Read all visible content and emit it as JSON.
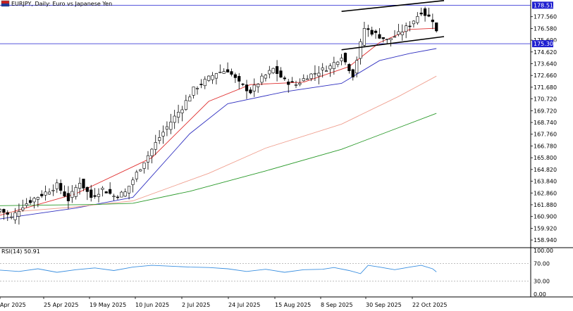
{
  "window": {
    "symbol_title": "EURJPY, Daily:  Euro vs Japanese Yen"
  },
  "price_panel": {
    "hlines": [
      {
        "value": 178.517,
        "label": "178.517",
        "color": "#1f1fd0"
      },
      {
        "value": 175.305,
        "label": "175.305",
        "color": "#1f1fd0"
      }
    ]
  },
  "rsi_panel": {
    "label": "RSI(14) 50.91",
    "levels": [
      70,
      30
    ],
    "ticks": [
      "100.00",
      "70.00",
      "30.00",
      "0.00"
    ]
  },
  "chart_data": {
    "type": "candlestick",
    "timeframe": "Daily",
    "ylim": [
      158.3,
      178.95
    ],
    "y_ticks": [
      "177.560",
      "176.580",
      "175.600",
      "174.620",
      "173.640",
      "172.660",
      "171.680",
      "170.720",
      "169.720",
      "168.740",
      "167.760",
      "166.780",
      "165.800",
      "164.820",
      "163.840",
      "162.860",
      "161.880",
      "160.900",
      "159.920",
      "158.940"
    ],
    "x_ticks": [
      "4 Apr 2025",
      "25 Apr 2025",
      "19 May 2025",
      "10 Jun 2025",
      "2 Jul 2025",
      "24 Jul 2025",
      "15 Aug 2025",
      "8 Sep 2025",
      "30 Sep 2025",
      "22 Oct 2025"
    ],
    "close_path": [
      [
        0,
        161.5
      ],
      [
        3,
        160.8
      ],
      [
        6,
        161.8
      ],
      [
        9,
        162.4
      ],
      [
        12,
        162.9
      ],
      [
        15,
        163.5
      ],
      [
        18,
        162.3
      ],
      [
        21,
        163.8
      ],
      [
        24,
        162.5
      ],
      [
        27,
        163.2
      ],
      [
        30,
        162.6
      ],
      [
        33,
        162.9
      ],
      [
        36,
        164.5
      ],
      [
        39,
        166.0
      ],
      [
        42,
        167.5
      ],
      [
        45,
        168.8
      ],
      [
        48,
        170.0
      ],
      [
        51,
        171.5
      ],
      [
        54,
        172.2
      ],
      [
        57,
        172.9
      ],
      [
        60,
        173.1
      ],
      [
        63,
        172.0
      ],
      [
        66,
        171.3
      ],
      [
        69,
        172.4
      ],
      [
        72,
        173.2
      ],
      [
        75,
        172.2
      ],
      [
        78,
        171.9
      ],
      [
        81,
        172.6
      ],
      [
        84,
        173.0
      ],
      [
        87,
        173.4
      ],
      [
        90,
        174.3
      ],
      [
        93,
        172.7
      ],
      [
        96,
        176.6
      ],
      [
        99,
        176.1
      ],
      [
        102,
        175.6
      ],
      [
        105,
        176.1
      ],
      [
        108,
        176.9
      ],
      [
        111,
        178.0
      ],
      [
        114,
        177.3
      ],
      [
        115,
        176.3
      ]
    ],
    "series": [
      {
        "name": "",
        "color": "#e03030",
        "values": [
          [
            0,
            161.0
          ],
          [
            20,
            162.8
          ],
          [
            40,
            165.8
          ],
          [
            55,
            170.5
          ],
          [
            66,
            171.9
          ],
          [
            80,
            172.1
          ],
          [
            92,
            173.4
          ],
          [
            100,
            175.4
          ],
          [
            108,
            176.5
          ],
          [
            115,
            176.6
          ]
        ]
      },
      {
        "name": "",
        "color": "#3030c0",
        "values": [
          [
            0,
            160.7
          ],
          [
            20,
            161.6
          ],
          [
            35,
            162.5
          ],
          [
            50,
            167.8
          ],
          [
            60,
            170.3
          ],
          [
            75,
            171.3
          ],
          [
            90,
            172.0
          ],
          [
            100,
            173.9
          ],
          [
            108,
            174.5
          ],
          [
            115,
            174.9
          ]
        ]
      },
      {
        "name": "",
        "color": "#f0a090",
        "values": [
          [
            0,
            161.2
          ],
          [
            20,
            161.7
          ],
          [
            35,
            162.2
          ],
          [
            55,
            164.5
          ],
          [
            70,
            166.6
          ],
          [
            90,
            168.6
          ],
          [
            105,
            170.9
          ],
          [
            115,
            172.6
          ]
        ]
      },
      {
        "name": "",
        "color": "#2a9a2a",
        "values": [
          [
            0,
            161.8
          ],
          [
            25,
            161.9
          ],
          [
            35,
            162.0
          ],
          [
            50,
            163.0
          ],
          [
            70,
            164.7
          ],
          [
            90,
            166.5
          ],
          [
            105,
            168.3
          ],
          [
            115,
            169.5
          ]
        ]
      }
    ],
    "trendlines": [
      {
        "from": [
          90,
          178.0
        ],
        "to": [
          117,
          178.9
        ]
      },
      {
        "from": [
          90,
          174.8
        ],
        "to": [
          117,
          175.9
        ]
      }
    ],
    "rsi_values": [
      [
        0,
        55
      ],
      [
        5,
        52
      ],
      [
        10,
        58
      ],
      [
        15,
        50
      ],
      [
        20,
        56
      ],
      [
        25,
        60
      ],
      [
        30,
        54
      ],
      [
        35,
        62
      ],
      [
        40,
        66
      ],
      [
        45,
        64
      ],
      [
        50,
        62
      ],
      [
        55,
        61
      ],
      [
        60,
        58
      ],
      [
        65,
        52
      ],
      [
        70,
        57
      ],
      [
        75,
        50
      ],
      [
        80,
        56
      ],
      [
        85,
        57
      ],
      [
        88,
        61
      ],
      [
        92,
        54
      ],
      [
        95,
        47
      ],
      [
        97,
        66
      ],
      [
        100,
        62
      ],
      [
        104,
        56
      ],
      [
        108,
        62
      ],
      [
        111,
        66
      ],
      [
        114,
        58
      ],
      [
        115,
        50.9
      ]
    ],
    "rsi_ylim": [
      0,
      100
    ],
    "grid": false
  }
}
